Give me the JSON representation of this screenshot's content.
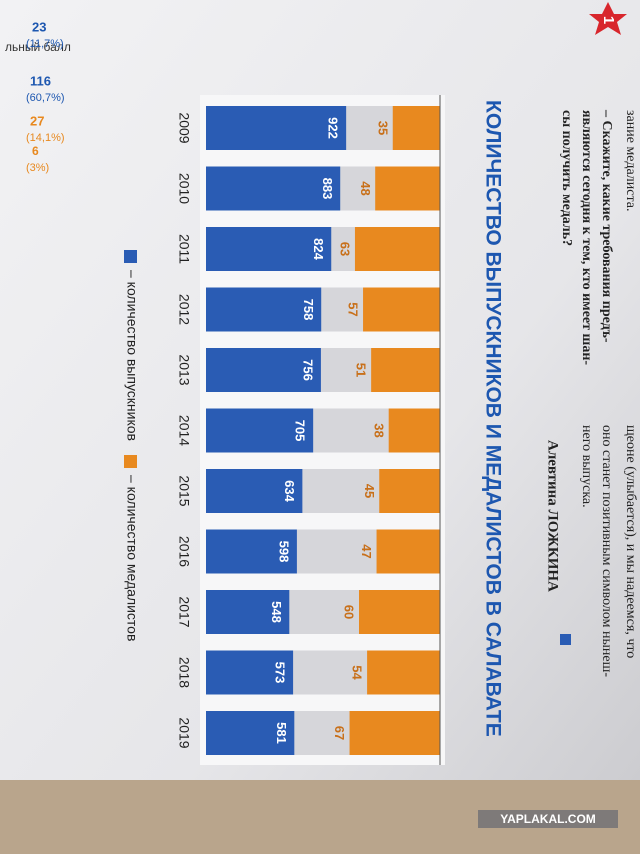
{
  "chart_data": {
    "type": "bar",
    "title": "КОЛИЧЕСТВО ВЫПУСКНИКОВ И МЕДАЛИСТОВ В САЛАВАТЕ",
    "categories": [
      "2009",
      "2010",
      "2011",
      "2012",
      "2013",
      "2014",
      "2015",
      "2016",
      "2017",
      "2018",
      "2019"
    ],
    "series": [
      {
        "name": "– количество выпускников",
        "color": "#2a5cb4",
        "values": [
          922,
          883,
          824,
          758,
          756,
          705,
          634,
          598,
          548,
          573,
          581
        ]
      },
      {
        "name": "– количество медалистов",
        "color": "#e8891f",
        "values": [
          35,
          48,
          63,
          57,
          51,
          38,
          45,
          47,
          60,
          54,
          67
        ]
      }
    ]
  },
  "article": {
    "left_lines": [
      "зание медалиста.",
      "– Скажите, какие требования предъ-",
      "являются сегодня к тем, кто имеет шан-",
      "сы получить медаль?"
    ],
    "right_lines": [
      "щеоне (улыбается), и мы надеемся, что",
      "оно станет позитивным символом нынеш-",
      "него выпуска."
    ],
    "author": "Алевтина ЛОЖКИНА",
    "badge": "1",
    "side_stats": [
      "23",
      "(11,7%)",
      "116",
      "(60,7%)",
      "27",
      "(14,1%)",
      "6",
      "(3%)"
    ],
    "side_label": "льный балл",
    "watermark": "YAPLAKAL.COM"
  }
}
